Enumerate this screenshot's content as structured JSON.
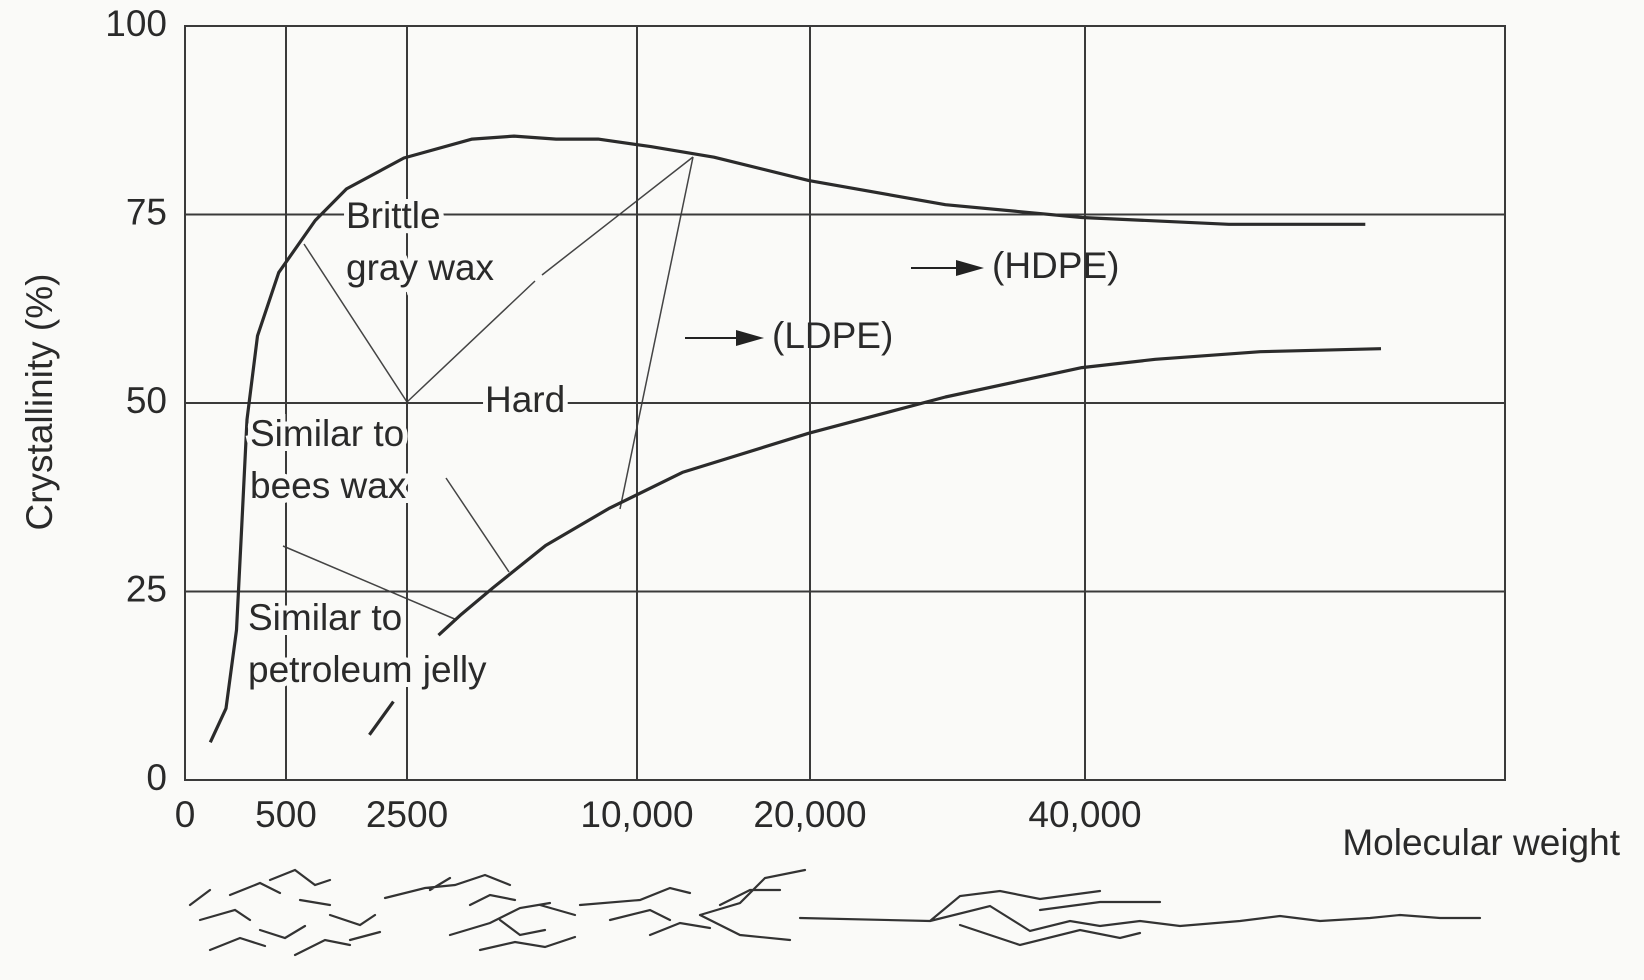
{
  "chart_data": {
    "type": "line",
    "x_label": "Molecular weight",
    "y_label": "Crystallinity (%)",
    "xlim": [
      0,
      70000
    ],
    "ylim": [
      0,
      100
    ],
    "xticks": [
      0,
      500,
      2500,
      {
        "value": 10000,
        "label": "10,000"
      },
      {
        "value": 20000,
        "label": "20,000"
      },
      {
        "value": 40000,
        "label": "40,000"
      }
    ],
    "yticks": [
      0,
      25,
      50,
      75,
      100
    ],
    "grid": true,
    "series": [
      {
        "name": "(HDPE)",
        "color": "#2b2b2b",
        "x": [
          125,
          203,
          255,
          281,
          307,
          359,
          464,
          983,
          1500,
          2448,
          4623,
          5993,
          7363,
          8733,
          10793,
          14451,
          19939,
          29847,
          39771,
          50458,
          60382
        ],
        "values": [
          5,
          9.5,
          19.9,
          33.8,
          47.8,
          58.9,
          67.3,
          74.2,
          78.4,
          82.5,
          85,
          85.4,
          85,
          85,
          84,
          82.6,
          79.5,
          76.3,
          74.6,
          73.7,
          73.7
        ]
      },
      {
        "name": "(LDPE)",
        "color": "#2b2b2b",
        "x": [
          1879,
          2276,
          null,
          3527,
          4281,
          5308,
          7021,
          9076,
          12622,
          19939,
          29847,
          39771,
          45115,
          52748,
          61527
        ],
        "values": [
          6,
          10.4,
          null,
          19.2,
          22,
          25.5,
          31.1,
          36,
          40.8,
          46,
          50.8,
          54.7,
          55.8,
          56.8,
          57.2
        ]
      }
    ],
    "annotations": [
      {
        "lines": [
          "Brittle",
          "gray wax"
        ]
      },
      {
        "lines": [
          "Hard"
        ]
      },
      {
        "lines": [
          "Similar to",
          "bees wax"
        ]
      },
      {
        "lines": [
          "Similar to",
          "petroleum jelly"
        ]
      }
    ]
  }
}
